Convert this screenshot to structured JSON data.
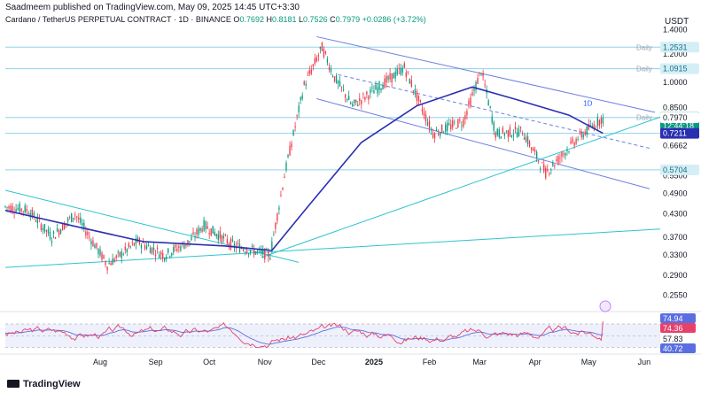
{
  "header": {
    "publisher_line": "Saadmeem published on TradingView.com, May 09, 2025 14:45 UTC+3:30",
    "symbol": "Cardano / TetherUS PERPETUAL CONTRACT · 1D · BINANCE",
    "o_label": "O",
    "o_value": "0.7692",
    "h_label": "H",
    "h_value": "0.8181",
    "l_label": "L",
    "l_value": "0.7526",
    "c_label": "C",
    "c_value": "0.7979",
    "change": "+0.0286 (+3.72%)",
    "currency": "USDT"
  },
  "footer": {
    "brand": "TradingView"
  },
  "annotations": {
    "timeframe_label": "1D"
  },
  "colors": {
    "up": "#089981",
    "down": "#f23645",
    "ma": "#2a2fb0",
    "channel": "#6b7fe0",
    "support": "#2ec4cf",
    "level": "#8fd3e8",
    "rsi": "#e6416b",
    "rsi_ma": "#5b6ee1"
  },
  "chart_data": {
    "type": "candlestick",
    "title": "Cardano / TetherUS PERPETUAL CONTRACT · 1D · BINANCE",
    "y_scale": "log",
    "ylim": [
      0.235,
      1.43
    ],
    "y_ticks": [
      "1.4000",
      "1.2000",
      "1.0000",
      "0.8500",
      "0.7211",
      "0.6662",
      "0.5500",
      "0.4900",
      "0.4300",
      "0.3700",
      "0.3300",
      "0.2900",
      "0.2550"
    ],
    "x_ticks": [
      "Aug",
      "Sep",
      "Oct",
      "Nov",
      "Dec",
      "2025",
      "Feb",
      "Mar",
      "Apr",
      "May",
      "Jun"
    ],
    "x_tick_dates": [
      "2024-08-01",
      "2024-09-01",
      "2024-10-01",
      "2024-11-01",
      "2024-12-01",
      "2025-01-01",
      "2025-02-01",
      "2025-03-01",
      "2025-04-01",
      "2025-05-01",
      "2025-06-01"
    ],
    "xlim": [
      "2024-06-09",
      "2025-06-10"
    ],
    "horizontal_levels": [
      {
        "label": "Daily",
        "value": 1.2531
      },
      {
        "label": "Daily",
        "value": 1.0915
      },
      {
        "label": "Daily",
        "value": 0.7979
      },
      {
        "label": "",
        "value": 0.7211
      },
      {
        "label": "",
        "value": 0.5704
      }
    ],
    "badges": [
      {
        "text": "1.2531",
        "value": 1.2531,
        "style": "level"
      },
      {
        "text": "1.0915",
        "value": 1.0915,
        "style": "level"
      },
      {
        "text": "0.7979",
        "value": 0.7979,
        "style": "up"
      },
      {
        "text": "12:44:18",
        "value": 0.758,
        "style": "up"
      },
      {
        "text": "0.7970",
        "value": 0.797,
        "style": "plain"
      },
      {
        "text": "0.7211",
        "value": 0.7211,
        "style": "ma"
      },
      {
        "text": "0.5704",
        "value": 0.5704,
        "style": "level"
      }
    ],
    "key_prices": [
      {
        "date": "2024-06-09",
        "price": 0.45
      },
      {
        "date": "2024-06-22",
        "price": 0.44
      },
      {
        "date": "2024-07-05",
        "price": 0.37
      },
      {
        "date": "2024-07-18",
        "price": 0.43
      },
      {
        "date": "2024-08-05",
        "price": 0.31
      },
      {
        "date": "2024-08-22",
        "price": 0.36
      },
      {
        "date": "2024-09-06",
        "price": 0.33
      },
      {
        "date": "2024-09-20",
        "price": 0.36
      },
      {
        "date": "2024-09-28",
        "price": 0.4
      },
      {
        "date": "2024-10-15",
        "price": 0.35
      },
      {
        "date": "2024-11-04",
        "price": 0.33
      },
      {
        "date": "2024-11-12",
        "price": 0.55
      },
      {
        "date": "2024-11-23",
        "price": 0.98
      },
      {
        "date": "2024-12-03",
        "price": 1.25
      },
      {
        "date": "2024-12-10",
        "price": 1.03
      },
      {
        "date": "2024-12-20",
        "price": 0.86
      },
      {
        "date": "2025-01-05",
        "price": 0.98
      },
      {
        "date": "2025-01-18",
        "price": 1.1
      },
      {
        "date": "2025-02-03",
        "price": 0.72
      },
      {
        "date": "2025-02-20",
        "price": 0.78
      },
      {
        "date": "2025-03-02",
        "price": 1.08
      },
      {
        "date": "2025-03-10",
        "price": 0.72
      },
      {
        "date": "2025-03-25",
        "price": 0.73
      },
      {
        "date": "2025-04-07",
        "price": 0.56
      },
      {
        "date": "2025-04-25",
        "price": 0.7
      },
      {
        "date": "2025-05-09",
        "price": 0.7979
      }
    ],
    "moving_average": [
      {
        "date": "2024-06-09",
        "price": 0.44
      },
      {
        "date": "2024-07-15",
        "price": 0.4
      },
      {
        "date": "2024-08-25",
        "price": 0.36
      },
      {
        "date": "2024-10-10",
        "price": 0.35
      },
      {
        "date": "2024-11-05",
        "price": 0.34
      },
      {
        "date": "2024-11-25",
        "price": 0.45
      },
      {
        "date": "2024-12-25",
        "price": 0.68
      },
      {
        "date": "2025-01-25",
        "price": 0.86
      },
      {
        "date": "2025-02-25",
        "price": 0.97
      },
      {
        "date": "2025-03-20",
        "price": 0.9
      },
      {
        "date": "2025-04-20",
        "price": 0.81
      },
      {
        "date": "2025-05-09",
        "price": 0.7211
      }
    ],
    "trendlines": [
      {
        "role": "channel",
        "start": {
          "date": "2024-11-30",
          "price": 1.34
        },
        "end": {
          "date": "2025-06-07",
          "price": 0.825
        }
      },
      {
        "role": "channel",
        "start": {
          "date": "2024-11-30",
          "price": 0.9
        },
        "end": {
          "date": "2025-06-04",
          "price": 0.505
        }
      },
      {
        "role": "channel-mid",
        "start": {
          "date": "2024-12-12",
          "price": 1.05
        },
        "end": {
          "date": "2025-06-04",
          "price": 0.655
        }
      },
      {
        "role": "support",
        "start": {
          "date": "2024-10-30",
          "price": 0.325
        },
        "end": {
          "date": "2025-06-10",
          "price": 0.8
        }
      },
      {
        "role": "support",
        "start": {
          "date": "2024-06-09",
          "price": 0.305
        },
        "end": {
          "date": "2025-06-10",
          "price": 0.39
        }
      },
      {
        "role": "support",
        "start": {
          "date": "2024-06-09",
          "price": 0.5
        },
        "end": {
          "date": "2024-11-20",
          "price": 0.315
        }
      }
    ],
    "rsi_panel": {
      "values_shown": [
        "74.94",
        "74.36",
        "57.83",
        "40.72"
      ],
      "levels": [
        70,
        50,
        30
      ]
    }
  }
}
